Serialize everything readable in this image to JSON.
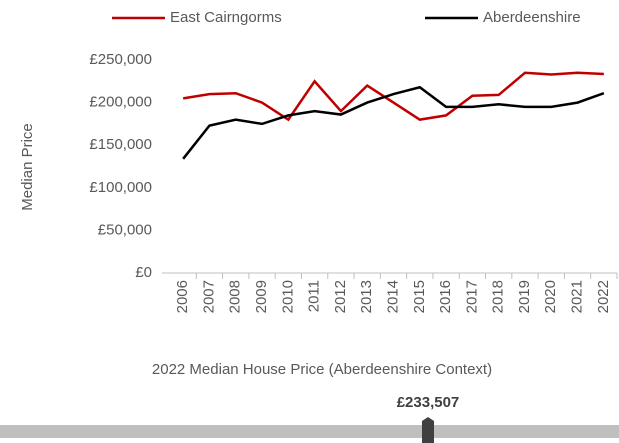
{
  "chart_data": {
    "type": "line",
    "y_label": "Median Price",
    "categories": [
      "2006",
      "2007",
      "2008",
      "2009",
      "2010",
      "2011",
      "2012",
      "2013",
      "2014",
      "2015",
      "2016",
      "2017",
      "2018",
      "2019",
      "2020",
      "2021",
      "2022"
    ],
    "series": [
      {
        "name": "East Cairngorms",
        "color": "#c00000",
        "values": [
          205000,
          210000,
          211000,
          200000,
          180000,
          225000,
          190000,
          220000,
          200000,
          180000,
          185000,
          208000,
          209000,
          235000,
          233000,
          235000,
          233507
        ]
      },
      {
        "name": "Aberdeenshire",
        "color": "#000000",
        "values": [
          134000,
          173000,
          180000,
          175000,
          185000,
          190000,
          186000,
          200000,
          210000,
          218000,
          195000,
          195000,
          198000,
          195000,
          195000,
          200000,
          211000
        ]
      }
    ],
    "ylim": [
      0,
      250000
    ],
    "yticks": [
      {
        "value": 0,
        "label": "£0"
      },
      {
        "value": 50000,
        "label": "£50,000"
      },
      {
        "value": 100000,
        "label": "£100,000"
      },
      {
        "value": 150000,
        "label": "£150,000"
      },
      {
        "value": 200000,
        "label": "£200,000"
      },
      {
        "value": 250000,
        "label": "£250,000"
      }
    ],
    "grid": false,
    "legend": "top"
  },
  "indicator": {
    "title": "2022 Median House Price (Aberdeenshire Context)",
    "value": 233507,
    "value_label": "£233,507"
  }
}
